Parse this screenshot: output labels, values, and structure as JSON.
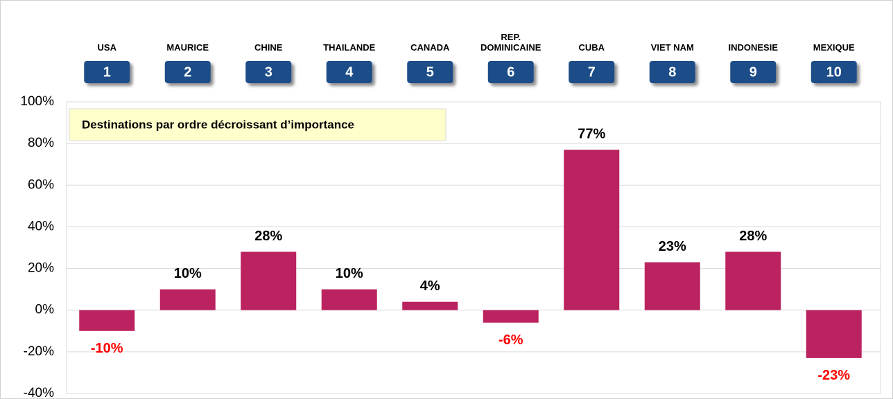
{
  "chart_data": {
    "type": "bar",
    "annotation": "Destinations par ordre décroissant d’importance",
    "categories": [
      "USA",
      "MAURICE",
      "CHINE",
      "THAILANDE",
      "CANADA",
      "REP. DOMINICAINE",
      "CUBA",
      "VIET NAM",
      "INDONESIE",
      "MEXIQUE"
    ],
    "ranks": [
      1,
      2,
      3,
      4,
      5,
      6,
      7,
      8,
      9,
      10
    ],
    "values": [
      -10,
      10,
      28,
      10,
      4,
      -6,
      77,
      23,
      28,
      -23
    ],
    "value_labels": [
      "-10%",
      "10%",
      "28%",
      "10%",
      "4%",
      "-6%",
      "77%",
      "23%",
      "28%",
      "-23%"
    ],
    "color": "#bb2360",
    "negative_label_color": "#ff0000",
    "ylim": [
      -40,
      100
    ],
    "yticks": [
      {
        "value": -40,
        "label": "-40%"
      },
      {
        "value": -20,
        "label": "-20%"
      },
      {
        "value": 0,
        "label": "0%"
      },
      {
        "value": 20,
        "label": "20%"
      },
      {
        "value": 40,
        "label": "40%"
      },
      {
        "value": 60,
        "label": "60%"
      },
      {
        "value": 80,
        "label": "80%"
      },
      {
        "value": 100,
        "label": "100%"
      }
    ],
    "grid": true
  }
}
